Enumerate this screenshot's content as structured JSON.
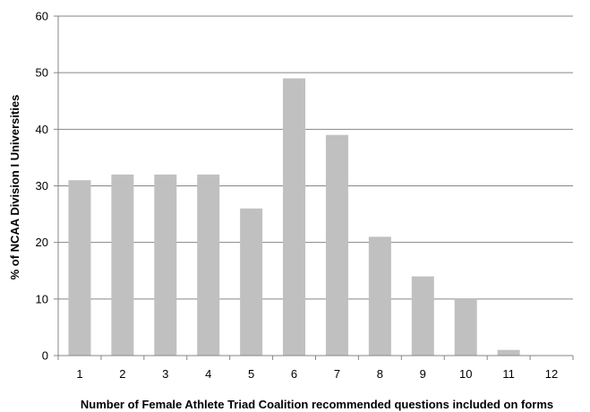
{
  "chart_data": {
    "type": "bar",
    "categories": [
      "1",
      "2",
      "3",
      "4",
      "5",
      "6",
      "7",
      "8",
      "9",
      "10",
      "11",
      "12"
    ],
    "values": [
      31,
      32,
      32,
      32,
      26,
      49,
      39,
      21,
      14,
      10,
      1,
      0
    ],
    "xlabel": "Number of Female Athlete Triad Coalition recommended questions included on forms",
    "ylabel": "% of NCAA Division I Universities",
    "ylim": [
      0,
      60
    ],
    "yticks": [
      0,
      10,
      20,
      30,
      40,
      50,
      60
    ],
    "grid": true,
    "legend": "none",
    "colors": {
      "bar": "#c0c0c0",
      "grid": "#868686",
      "axis": "#868686"
    }
  }
}
